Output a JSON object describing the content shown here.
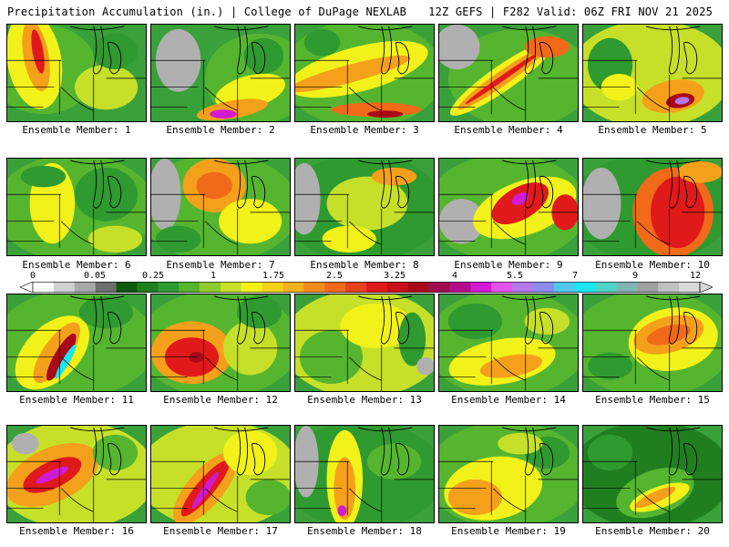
{
  "header": {
    "title": "Precipitation Accumulation (in.) | College of DuPage NEXLAB",
    "run_info": "12Z GEFS | F282 Valid: 06Z FRI NOV 21 2025"
  },
  "colorbar": {
    "tick_labels": [
      "0",
      "0.05",
      "0.25",
      "1",
      "1.75",
      "2.5",
      "3.25",
      "4",
      "5.5",
      "7",
      "9",
      "12"
    ],
    "colors": [
      "#ffffff",
      "#d0d0d0",
      "#a8a8a8",
      "#6e6e6e",
      "#0a5a0a",
      "#1f7f1f",
      "#2f9a2f",
      "#56b52f",
      "#8ccc2e",
      "#c6e02a",
      "#f2f21a",
      "#f5d21a",
      "#f5b21a",
      "#f58c1a",
      "#f06a1a",
      "#e8401a",
      "#e01a1a",
      "#c8101a",
      "#a80a1a",
      "#a00a50",
      "#b40a8c",
      "#d21ad2",
      "#e650f0",
      "#b478f0",
      "#8c8cf0",
      "#50c8f0",
      "#1ae6f0",
      "#50d2c8",
      "#80b4b4",
      "#a0a0a0",
      "#c0c0c0",
      "#d8d8d8"
    ],
    "legend_name": "precip-colorbar"
  },
  "panels": [
    {
      "label": "Ensemble Member: 1"
    },
    {
      "label": "Ensemble Member: 2"
    },
    {
      "label": "Ensemble Member: 3"
    },
    {
      "label": "Ensemble Member: 4"
    },
    {
      "label": "Ensemble Member: 5"
    },
    {
      "label": "Ensemble Member: 6"
    },
    {
      "label": "Ensemble Member: 7"
    },
    {
      "label": "Ensemble Member: 8"
    },
    {
      "label": "Ensemble Member: 9"
    },
    {
      "label": "Ensemble Member: 10"
    },
    {
      "label": "Ensemble Member: 11"
    },
    {
      "label": "Ensemble Member: 12"
    },
    {
      "label": "Ensemble Member: 13"
    },
    {
      "label": "Ensemble Member: 14"
    },
    {
      "label": "Ensemble Member: 15"
    },
    {
      "label": "Ensemble Member: 16"
    },
    {
      "label": "Ensemble Member: 17"
    },
    {
      "label": "Ensemble Member: 18"
    },
    {
      "label": "Ensemble Member: 19"
    },
    {
      "label": "Ensemble Member: 20"
    }
  ]
}
